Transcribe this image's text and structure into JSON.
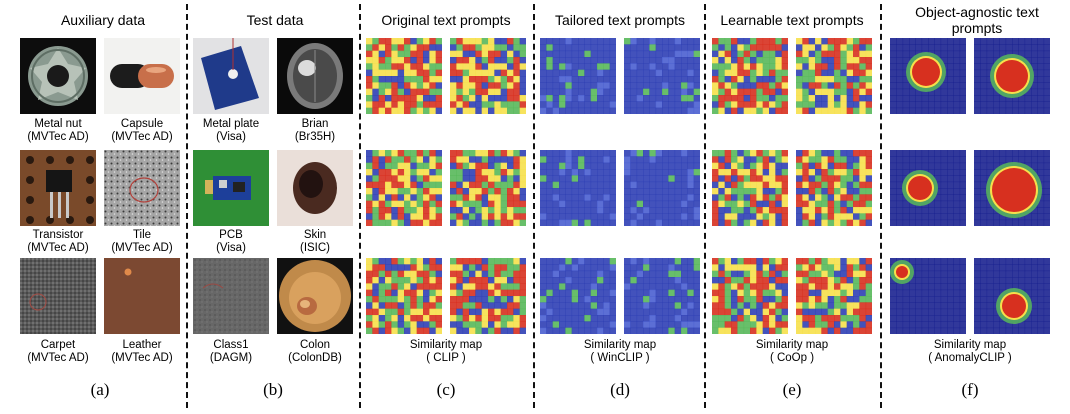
{
  "headers": {
    "a": "Auxiliary data",
    "b": "Test data",
    "c": "Original  text prompts",
    "d": "Tailored text prompts",
    "e": "Learnable text prompts",
    "f_line1": "Object-agnostic text",
    "f_line2": "prompts"
  },
  "aux_captions": [
    {
      "name": "Metal nut",
      "source": "(MVTec AD)"
    },
    {
      "name": "Capsule",
      "source": "(MVTec AD)"
    },
    {
      "name": "Transistor",
      "source": "(MVTec AD)"
    },
    {
      "name": "Tile",
      "source": "(MVTec AD)"
    },
    {
      "name": "Carpet",
      "source": "(MVTec AD)"
    },
    {
      "name": "Leather",
      "source": "(MVTec AD)"
    }
  ],
  "test_captions": [
    {
      "name": "Metal plate",
      "source": "(Visa)"
    },
    {
      "name": "Brian",
      "source": "(Br35H)"
    },
    {
      "name": "PCB",
      "source": "(Visa)"
    },
    {
      "name": "Skin",
      "source": "(ISIC)"
    },
    {
      "name": "Class1",
      "source": "(DAGM)"
    },
    {
      "name": "Colon",
      "source": "(ColonDB)"
    }
  ],
  "similarity_captions": {
    "c": {
      "line1": "Similarity map",
      "line2": "( CLIP )"
    },
    "d": {
      "line1": "Similarity map",
      "line2": "( WinCLIP )"
    },
    "e": {
      "line1": "Similarity map",
      "line2": "( CoOp )"
    },
    "f": {
      "line1": "Similarity map",
      "line2": "( AnomalyCLIP )"
    }
  },
  "panel_labels": [
    "(a)",
    "(b)",
    "(c)",
    "(d)",
    "(e)",
    "(f)"
  ],
  "colors": {
    "heat_red": "#d7301f",
    "heat_yellow": "#f6e04b",
    "heat_green": "#58b85a",
    "heat_blue": "#2f3fb5",
    "deep_blue": "#1b2290",
    "separator": "#111111"
  }
}
